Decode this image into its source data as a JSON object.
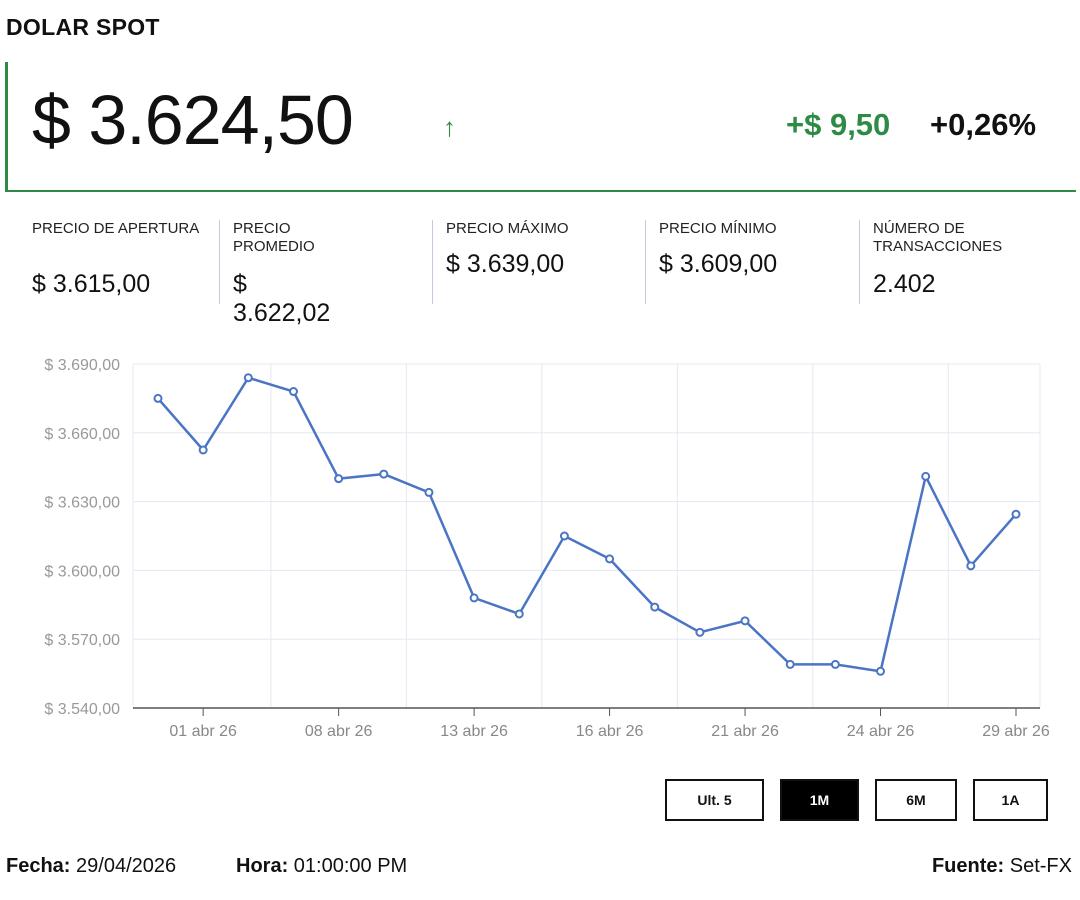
{
  "title": "DOLAR SPOT",
  "price": "$ 3.624,50",
  "trend_icon": "arrow-up",
  "change": "+$ 9,50",
  "change_pct": "+0,26%",
  "colors": {
    "up": "#2e8b45",
    "line": "#4a74c4"
  },
  "stats": [
    {
      "label": "PRECIO DE APERTURA",
      "value": "$ 3.615,00"
    },
    {
      "label": "PRECIO PROMEDIO",
      "value": "$ 3.622,02"
    },
    {
      "label": "PRECIO MÁXIMO",
      "value": "$ 3.639,00"
    },
    {
      "label": "PRECIO MÍNIMO",
      "value": "$ 3.609,00"
    },
    {
      "label": "NÚMERO DE TRANSACCIONES",
      "value": "2.402"
    }
  ],
  "range_buttons": [
    {
      "label": "Ult. 5",
      "active": false
    },
    {
      "label": "1M",
      "active": true
    },
    {
      "label": "6M",
      "active": false
    },
    {
      "label": "1A",
      "active": false
    }
  ],
  "footer": {
    "date_label": "Fecha:",
    "date": "29/04/2026",
    "time_label": "Hora:",
    "time": "01:00:00 PM",
    "source_label": "Fuente:",
    "source": "Set-FX"
  },
  "chart_data": {
    "type": "line",
    "x": [
      "2026-03-31",
      "2026-04-01",
      "2026-04-06",
      "2026-04-07",
      "2026-04-08",
      "2026-04-09",
      "2026-04-10",
      "2026-04-13",
      "2026-04-14",
      "2026-04-15",
      "2026-04-16",
      "2026-04-17",
      "2026-04-20",
      "2026-04-21",
      "2026-04-22",
      "2026-04-23",
      "2026-04-24",
      "2026-04-27",
      "2026-04-28",
      "2026-04-29"
    ],
    "values": [
      3675,
      3652.5,
      3684,
      3678,
      3640,
      3642,
      3634,
      3588,
      3581,
      3615,
      3605,
      3584,
      3573,
      3578,
      3559,
      3559,
      3556,
      3641,
      3602,
      3624.5
    ],
    "x_ticks": [
      {
        "index": 1,
        "label": "01 abr 26"
      },
      {
        "index": 4,
        "label": "08 abr 26"
      },
      {
        "index": 7,
        "label": "13 abr 26"
      },
      {
        "index": 10,
        "label": "16 abr 26"
      },
      {
        "index": 13,
        "label": "21 abr 26"
      },
      {
        "index": 16,
        "label": "24 abr 26"
      },
      {
        "index": 19,
        "label": "29 abr 26"
      }
    ],
    "y_ticks": [
      "$ 3.540,00",
      "$ 3.570,00",
      "$ 3.600,00",
      "$ 3.630,00",
      "$ 3.660,00",
      "$ 3.690,00"
    ],
    "ylim": [
      3540,
      3690
    ],
    "grid": true,
    "legend": "none"
  }
}
